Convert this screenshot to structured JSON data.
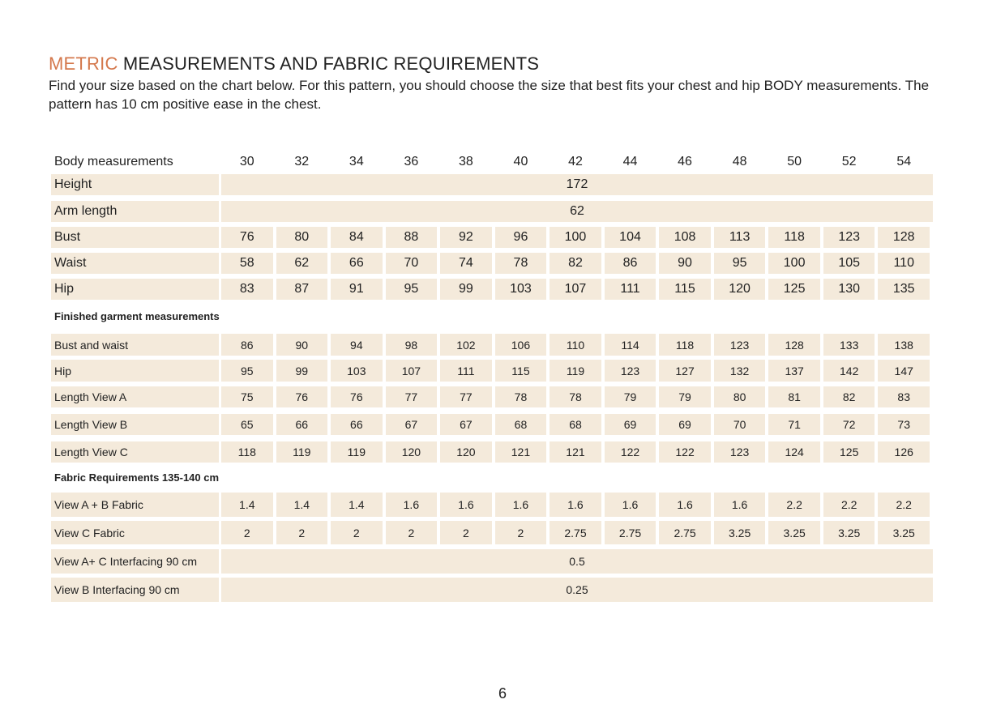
{
  "header": {
    "title_highlight": "METRIC",
    "title_rest": "MEASUREMENTS AND FABRIC REQUIREMENTS",
    "description": "Find your size based on the chart below. For this pattern, you should choose the size that best fits your chest and hip BODY measurements. The pattern has 10 cm positive ease in the chest."
  },
  "table": {
    "header_label": "Body measurements",
    "sizes": [
      30,
      32,
      34,
      36,
      38,
      40,
      42,
      44,
      46,
      48,
      50,
      52,
      54
    ],
    "sections": [
      {
        "rows": [
          {
            "label": "Height",
            "value": 172
          },
          {
            "label": "Arm length",
            "value": 62
          },
          {
            "label": "Bust",
            "values": [
              76,
              80,
              84,
              88,
              92,
              96,
              100,
              104,
              108,
              113,
              118,
              123,
              128
            ]
          },
          {
            "label": "Waist",
            "values": [
              58,
              62,
              66,
              70,
              74,
              78,
              82,
              86,
              90,
              95,
              100,
              105,
              110
            ]
          },
          {
            "label": "Hip",
            "values": [
              83,
              87,
              91,
              95,
              99,
              103,
              107,
              111,
              115,
              120,
              125,
              130,
              135
            ]
          }
        ]
      },
      {
        "title": "Finished garment measurements",
        "rows": [
          {
            "label": "Bust and waist",
            "values": [
              86,
              90,
              94,
              98,
              102,
              106,
              110,
              114,
              118,
              123,
              128,
              133,
              138
            ]
          },
          {
            "label": "Hip",
            "values": [
              95,
              99,
              103,
              107,
              111,
              115,
              119,
              123,
              127,
              132,
              137,
              142,
              147
            ]
          },
          {
            "label": "Length View A",
            "values": [
              75,
              76,
              76,
              77,
              77,
              78,
              78,
              79,
              79,
              80,
              81,
              82,
              83
            ]
          },
          {
            "label": "Length View B",
            "values": [
              65,
              66,
              66,
              67,
              67,
              68,
              68,
              69,
              69,
              70,
              71,
              72,
              73
            ]
          },
          {
            "label": "Length View C",
            "values": [
              118,
              119,
              119,
              120,
              120,
              121,
              121,
              122,
              122,
              123,
              124,
              125,
              126
            ]
          }
        ]
      },
      {
        "title": "Fabric Requirements  135-140 cm",
        "rows": [
          {
            "label": "View A + B Fabric",
            "values": [
              1.4,
              1.4,
              1.4,
              1.6,
              1.6,
              1.6,
              1.6,
              1.6,
              1.6,
              1.6,
              2.2,
              2.2,
              2.2
            ]
          },
          {
            "label": "View C Fabric",
            "values": [
              2,
              2,
              2,
              2,
              2,
              2,
              2.75,
              2.75,
              2.75,
              3.25,
              3.25,
              3.25,
              3.25
            ]
          },
          {
            "label": "View A+ C Interfacing 90 cm",
            "value": 0.5
          },
          {
            "label": "View B Interfacing 90 cm",
            "value": 0.25
          }
        ]
      }
    ]
  },
  "footer": {
    "page_number": 6
  }
}
